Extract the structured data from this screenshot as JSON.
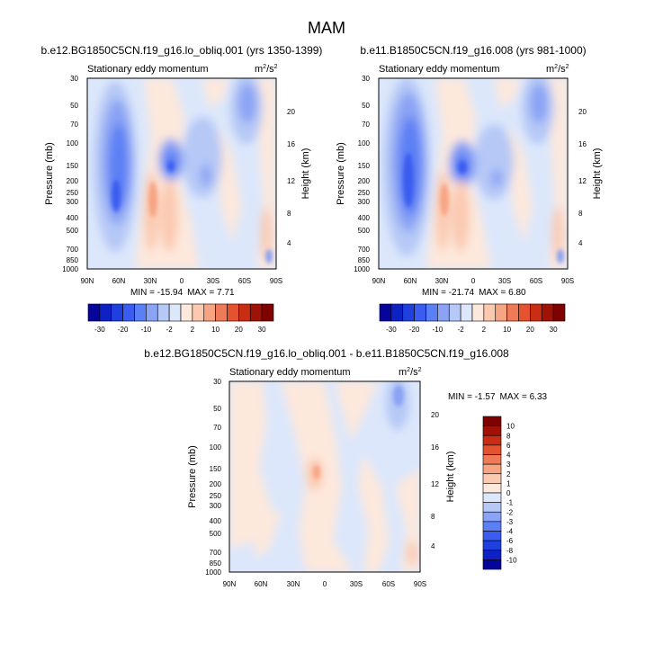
{
  "figure": {
    "title": "MAM",
    "units_base": "m",
    "units_sup1": "2",
    "units_mid": "/s",
    "units_sup2": "2"
  },
  "chart_data": [
    {
      "id": "panel-a",
      "type": "heatmap",
      "title": "b.e12.BG1850C5CN.f19_g16.lo_obliq.001 (yrs 1350-1399)",
      "subtitle": "Stationary eddy momentum",
      "xlabel": "",
      "ylabel": "Pressure (mb)",
      "y2label": "Height (km)",
      "x_ticks": [
        "90N",
        "60N",
        "30N",
        "0",
        "30S",
        "60S",
        "90S"
      ],
      "x_values": [
        90,
        60,
        30,
        0,
        -30,
        -60,
        -90
      ],
      "y_ticks": [
        "30",
        "50",
        "70",
        "100",
        "150",
        "200",
        "250",
        "300",
        "400",
        "500",
        "700",
        "850",
        "1000"
      ],
      "y_values": [
        30,
        50,
        70,
        100,
        150,
        200,
        250,
        300,
        400,
        500,
        700,
        850,
        1000
      ],
      "y2_ticks": [
        "4",
        "8",
        "12",
        "16",
        "20"
      ],
      "y2_values": [
        4,
        8,
        12,
        16,
        20
      ],
      "ylim": [
        1000,
        30
      ],
      "min_label": "MIN = -15.94",
      "max_label": "MAX =  7.71",
      "min": -15.94,
      "max": 7.71
    },
    {
      "id": "panel-b",
      "type": "heatmap",
      "title": "b.e11.B1850C5CN.f19_g16.008 (yrs 981-1000)",
      "subtitle": "Stationary eddy momentum",
      "xlabel": "",
      "ylabel": "Pressure (mb)",
      "y2label": "Height (km)",
      "x_ticks": [
        "90N",
        "60N",
        "30N",
        "0",
        "30S",
        "60S",
        "90S"
      ],
      "x_values": [
        90,
        60,
        30,
        0,
        -30,
        -60,
        -90
      ],
      "y_ticks": [
        "30",
        "50",
        "70",
        "100",
        "150",
        "200",
        "250",
        "300",
        "400",
        "500",
        "700",
        "850",
        "1000"
      ],
      "y_values": [
        30,
        50,
        70,
        100,
        150,
        200,
        250,
        300,
        400,
        500,
        700,
        850,
        1000
      ],
      "y2_ticks": [
        "4",
        "8",
        "12",
        "16",
        "20"
      ],
      "y2_values": [
        4,
        8,
        12,
        16,
        20
      ],
      "ylim": [
        1000,
        30
      ],
      "min_label": "MIN = -21.74",
      "max_label": "MAX =  6.80",
      "min": -21.74,
      "max": 6.8
    },
    {
      "id": "panel-c",
      "type": "heatmap",
      "title": "b.e12.BG1850C5CN.f19_g16.lo_obliq.001 - b.e11.B1850C5CN.f19_g16.008",
      "subtitle": "Stationary eddy momentum",
      "xlabel": "",
      "ylabel": "Pressure (mb)",
      "y2label": "Height (km)",
      "x_ticks": [
        "90N",
        "60N",
        "30N",
        "0",
        "30S",
        "60S",
        "90S"
      ],
      "x_values": [
        90,
        60,
        30,
        0,
        -30,
        -60,
        -90
      ],
      "y_ticks": [
        "30",
        "50",
        "70",
        "100",
        "150",
        "200",
        "250",
        "300",
        "400",
        "500",
        "700",
        "850",
        "1000"
      ],
      "y_values": [
        30,
        50,
        70,
        100,
        150,
        200,
        250,
        300,
        400,
        500,
        700,
        850,
        1000
      ],
      "y2_ticks": [
        "4",
        "8",
        "12",
        "16",
        "20"
      ],
      "y2_values": [
        4,
        8,
        12,
        16,
        20
      ],
      "ylim": [
        1000,
        30
      ],
      "min_label": "MIN = -1.57",
      "max_label": "MAX =  6.33",
      "min": -1.57,
      "max": 6.33
    }
  ],
  "colorbar_main": {
    "orientation": "horizontal",
    "labels": [
      "-30",
      "-20",
      "-10",
      "-2",
      "2",
      "10",
      "20",
      "30"
    ],
    "colors": [
      "#05049b",
      "#0e22c4",
      "#1f3fde",
      "#3a5cf0",
      "#5b7ff5",
      "#8aa3f4",
      "#b5c8f6",
      "#dce7fb",
      "#fde8dc",
      "#fbc9b0",
      "#f7a483",
      "#f07a58",
      "#e4522f",
      "#c92d14",
      "#a01106",
      "#7d0200"
    ]
  },
  "colorbar_diff": {
    "orientation": "vertical",
    "labels": [
      "10",
      "8",
      "6",
      "4",
      "3",
      "2",
      "1",
      "0",
      "-1",
      "-2",
      "-3",
      "-4",
      "-6",
      "-8",
      "-10"
    ],
    "colors": [
      "#7d0200",
      "#a01106",
      "#c92d14",
      "#e4522f",
      "#f07a58",
      "#f7a483",
      "#fbc9b0",
      "#fde8dc",
      "#dce7fb",
      "#b5c8f6",
      "#8aa3f4",
      "#5b7ff5",
      "#3a5cf0",
      "#1f3fde",
      "#0e22c4",
      "#05049b"
    ]
  }
}
